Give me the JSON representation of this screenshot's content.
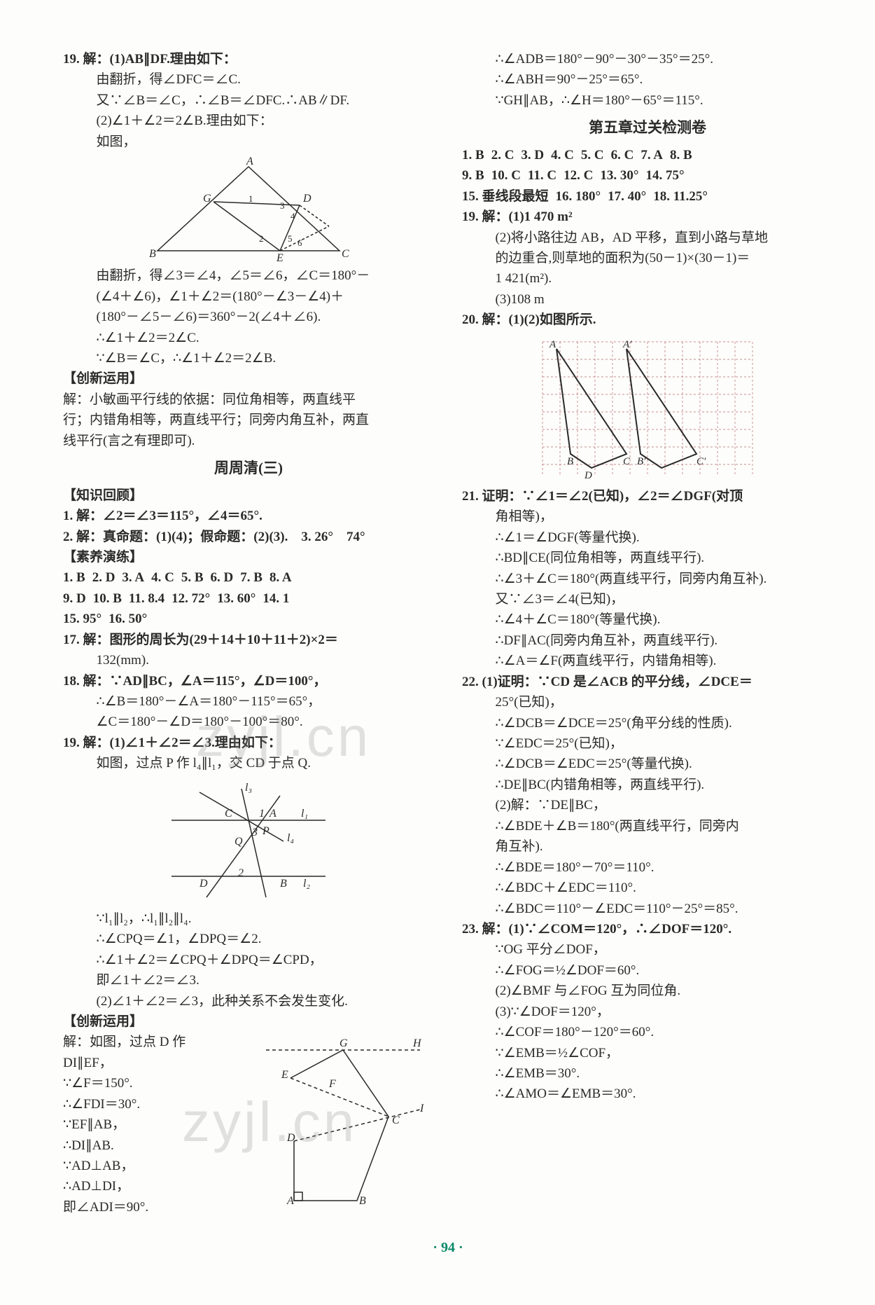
{
  "left": {
    "q19": {
      "l1": "19. 解：(1)AB∥DF.理由如下：",
      "l2": "由翻折，得∠DFC＝∠C.",
      "l3": "又∵∠B＝∠C，∴∠B＝∠DFC.∴AB∥DF.",
      "l4": "(2)∠1＋∠2＝2∠B.理由如下：",
      "l5": "如图，",
      "fig": {
        "labels": [
          "A",
          "B",
          "C",
          "D",
          "E",
          "G",
          "1",
          "2",
          "3",
          "4",
          "5",
          "6"
        ],
        "stroke": "#2a2a2a"
      },
      "l6": "由翻折，得∠3＝∠4，∠5＝∠6，∠C＝180°－",
      "l7": "(∠4＋∠6)，∠1＋∠2＝(180°－∠3－∠4)＋",
      "l8": "(180°－∠5－∠6)＝360°－2(∠4＋∠6).",
      "l9": "∴∠1＋∠2＝2∠C.",
      "l10": "∵∠B＝∠C，∴∠1＋∠2＝2∠B."
    },
    "cx1_title": "【创新运用】",
    "cx1": {
      "l1": "解：小敏画平行线的依据：同位角相等，两直线平",
      "l2": "行；内错角相等，两直线平行；同旁内角互补，两直",
      "l3": "线平行(言之有理即可)."
    },
    "zzq_title": "周周清(三)",
    "zshg_title": "【知识回顾】",
    "zshg": {
      "l1": "1. 解：∠2＝∠3＝115°，∠4＝65°.",
      "l2a": "2. 解：真命题：(1)(4)；假命题：(2)(3).",
      "l2b": "3. 26°　74°"
    },
    "syyl_title": "【素养演练】",
    "syyl_ans": {
      "r1": [
        "1. B",
        "2. D",
        "3. A",
        "4. C",
        "5. B",
        "6. D",
        "7. B",
        "8. A"
      ],
      "r2": [
        "9. D",
        "10. B",
        "11. 8.4",
        "12. 72°",
        "13. 60°",
        "14. 1"
      ],
      "r3": [
        "15. 95°",
        "16. 50°"
      ]
    },
    "q17": "17. 解：图形的周长为(29＋14＋10＋11＋2)×2＝",
    "q17b": "132(mm).",
    "q18": {
      "l1": "18. 解：∵AD∥BC，∠A＝115°，∠D＝100°，",
      "l2": "∴∠B＝180°－∠A＝180°－115°＝65°，",
      "l3": "∠C＝180°－∠D＝180°－100°＝80°."
    },
    "q19b": {
      "l1": "19. 解：(1)∠1＋∠2＝∠3.理由如下：",
      "l2": "如图，过点 P 作 l₄∥l₁，交 CD 于点 Q.",
      "fig": {
        "labels": [
          "A",
          "B",
          "C",
          "D",
          "P",
          "Q",
          "l₁",
          "l₂",
          "l₃",
          "l₄",
          "1",
          "2",
          "3"
        ],
        "stroke": "#2a2a2a"
      },
      "l3": "∵l₁∥l₂，∴l₁∥l₂∥l₄.",
      "l4": "∴∠CPQ＝∠1，∠DPQ＝∠2.",
      "l5": "∴∠1＋∠2＝∠CPQ＋∠DPQ＝∠CPD，",
      "l6": "即∠1＋∠2＝∠3.",
      "l7": "(2)∠1＋∠2＝∠3，此种关系不会发生变化."
    },
    "cx2_title": "【创新运用】",
    "cx2": {
      "l1": "解：如图，过点 D 作",
      "l2": "DI∥EF，",
      "l3": "∵∠F＝150°.",
      "l4": "∴∠FDI＝30°.",
      "l5": "∵EF∥AB，",
      "l6": "∴DI∥AB.",
      "l7": "∵AD⊥AB，",
      "l8": "∴AD⊥DI，",
      "l9": "即∠ADI＝90°.",
      "fig": {
        "labels": [
          "A",
          "B",
          "C",
          "D",
          "E",
          "F",
          "G",
          "H",
          "I"
        ],
        "stroke": "#2a2a2a"
      }
    }
  },
  "right": {
    "cont": {
      "l1": "∴∠ADB＝180°－90°－30°－35°＝25°.",
      "l2": "∴∠ABH＝90°－25°＝65°.",
      "l3": "∵GH∥AB，∴∠H＝180°－65°＝115°."
    },
    "ch5_title": "第五章过关检测卷",
    "ch5_ans": {
      "r1": [
        "1. B",
        "2. C",
        "3. D",
        "4. C",
        "5. C",
        "6. C",
        "7. A",
        "8. B"
      ],
      "r2": [
        "9. B",
        "10. C",
        "11. C",
        "12. C",
        "13. 30°",
        "14. 75°"
      ],
      "r3": [
        "15. 垂线段最短",
        "16. 180°",
        "17. 40°",
        "18. 11.25°"
      ]
    },
    "q19r": {
      "l1": "19. 解：(1)1 470 m²",
      "l2": "(2)将小路往边 AB，AD 平移，直到小路与草地",
      "l3": "的边重合,则草地的面积为(50－1)×(30－1)＝",
      "l4": "1 421(m²).",
      "l5": "(3)108 m"
    },
    "q20r": {
      "l1": "20. 解：(1)(2)如图所示.",
      "fig": {
        "labels": [
          "A",
          "A′",
          "B",
          "B′",
          "C",
          "C′",
          "D"
        ],
        "grid_color": "#b56a6a",
        "stroke": "#2a2a2a"
      }
    },
    "q21r": {
      "l1": "21. 证明：∵∠1＝∠2(已知)，∠2＝∠DGF(对顶",
      "l2": "角相等)，",
      "l3": "∴∠1＝∠DGF(等量代换).",
      "l4": "∴BD∥CE(同位角相等，两直线平行).",
      "l5": "∴∠3＋∠C＝180°(两直线平行，同旁内角互补).",
      "l6": "又∵∠3＝∠4(已知)，",
      "l7": "∴∠4＋∠C＝180°(等量代换).",
      "l8": "∴DF∥AC(同旁内角互补，两直线平行).",
      "l9": "∴∠A＝∠F(两直线平行，内错角相等)."
    },
    "q22r": {
      "l1": "22. (1)证明：∵CD 是∠ACB 的平分线，∠DCE＝",
      "l2": "25°(已知)，",
      "l3": "∴∠DCB＝∠DCE＝25°(角平分线的性质).",
      "l4": "∵∠EDC＝25°(已知)，",
      "l5": "∴∠DCB＝∠EDC＝25°(等量代换).",
      "l6": "∴DE∥BC(内错角相等，两直线平行).",
      "l7": "(2)解：∵DE∥BC，",
      "l8": "∴∠BDE＋∠B＝180°(两直线平行，同旁内",
      "l9": "角互补).",
      "l10": "∴∠BDE＝180°－70°＝110°.",
      "l11": "∴∠BDC＋∠EDC＝110°.",
      "l12": "∴∠BDC＝110°－∠EDC＝110°－25°＝85°."
    },
    "q23r": {
      "l1": "23. 解：(1)∵∠COM＝120°，∴∠DOF＝120°.",
      "l2": "∵OG 平分∠DOF，",
      "l3": "∴∠FOG＝½∠DOF＝60°.",
      "l4": "(2)∠BMF 与∠FOG 互为同位角.",
      "l5": "(3)∵∠DOF＝120°，",
      "l6": "∴∠COF＝180°－120°＝60°.",
      "l7": "∵∠EMB＝½∠COF，",
      "l8": "∴∠EMB＝30°.",
      "l9": "∴∠AMO＝∠EMB＝30°."
    }
  },
  "pagenum": "· 94 ·",
  "watermark": "zyjl.cn"
}
